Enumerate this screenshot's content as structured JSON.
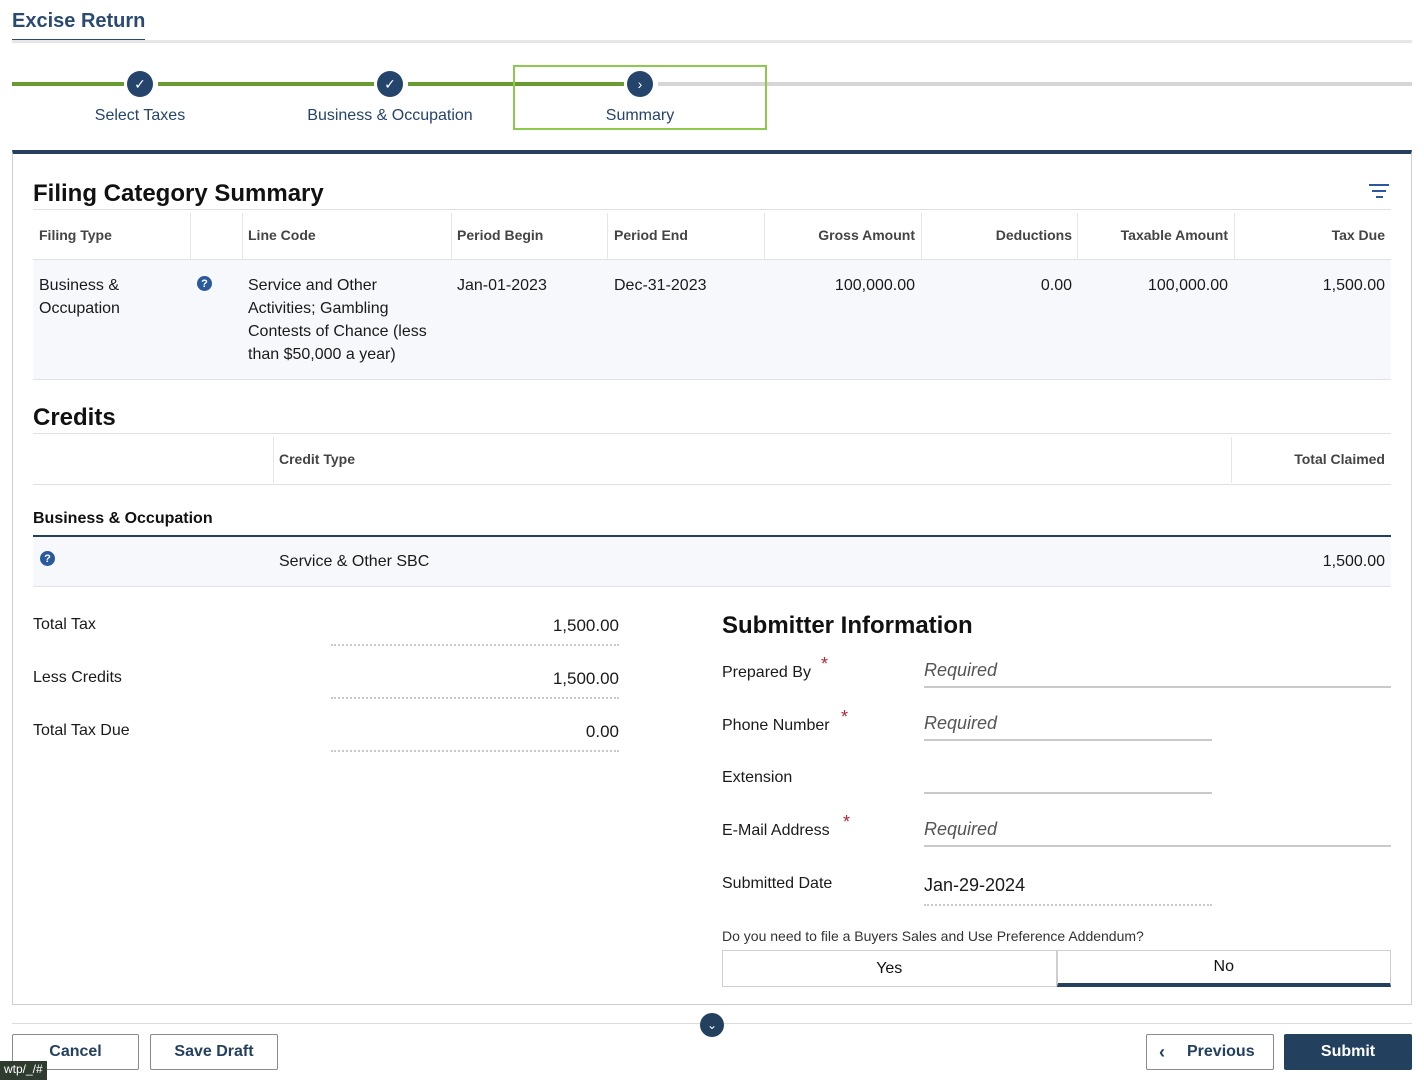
{
  "page": {
    "tab_title": "Excise Return"
  },
  "stepper": {
    "steps": [
      {
        "label": "Select Taxes",
        "state": "complete",
        "icon": "check-icon"
      },
      {
        "label": "Business & Occupation",
        "state": "complete",
        "icon": "check-icon"
      },
      {
        "label": "Summary",
        "state": "current",
        "icon": "chevron-right-icon"
      }
    ],
    "colors": {
      "complete": "#6a9a32",
      "pending": "#d6d6d6",
      "current_outline": "#8cc94c"
    }
  },
  "filing_summary": {
    "title": "Filing Category Summary",
    "columns": [
      "Filing Type",
      "Line Code",
      "Period Begin",
      "Period End",
      "Gross Amount",
      "Deductions",
      "Taxable Amount",
      "Tax Due"
    ],
    "rows": [
      {
        "filing_type": "Business & Occupation",
        "line_code": "Service and Other Activities; Gambling Contests of Chance (less than $50,000 a year)",
        "period_begin": "Jan-01-2023",
        "period_end": "Dec-31-2023",
        "gross_amount": "100,000.00",
        "deductions": "0.00",
        "taxable_amount": "100,000.00",
        "tax_due": "1,500.00"
      }
    ]
  },
  "credits": {
    "title": "Credits",
    "columns": [
      "Credit Type",
      "Total Claimed"
    ],
    "group_label": "Business & Occupation",
    "rows": [
      {
        "credit_type": "Service & Other SBC",
        "total_claimed": "1,500.00"
      }
    ]
  },
  "totals": {
    "total_tax_label": "Total Tax",
    "total_tax": "1,500.00",
    "less_credits_label": "Less Credits",
    "less_credits": "1,500.00",
    "total_tax_due_label": "Total Tax Due",
    "total_tax_due": "0.00"
  },
  "submitter": {
    "title": "Submitter Information",
    "prepared_by_label": "Prepared By",
    "prepared_by_placeholder": "Required",
    "phone_label": "Phone Number",
    "phone_placeholder": "Required",
    "extension_label": "Extension",
    "email_label": "E-Mail Address",
    "email_placeholder": "Required",
    "submitted_date_label": "Submitted Date",
    "submitted_date": "Jan-29-2024",
    "addendum_question": "Do you need to file a Buyers Sales and Use Preference Addendum?",
    "addendum_yes": "Yes",
    "addendum_no": "No",
    "addendum_selected": "No"
  },
  "footer": {
    "cancel": "Cancel",
    "save_draft": "Save Draft",
    "previous": "Previous",
    "submit": "Submit",
    "status_url": "wtp/_/#"
  }
}
